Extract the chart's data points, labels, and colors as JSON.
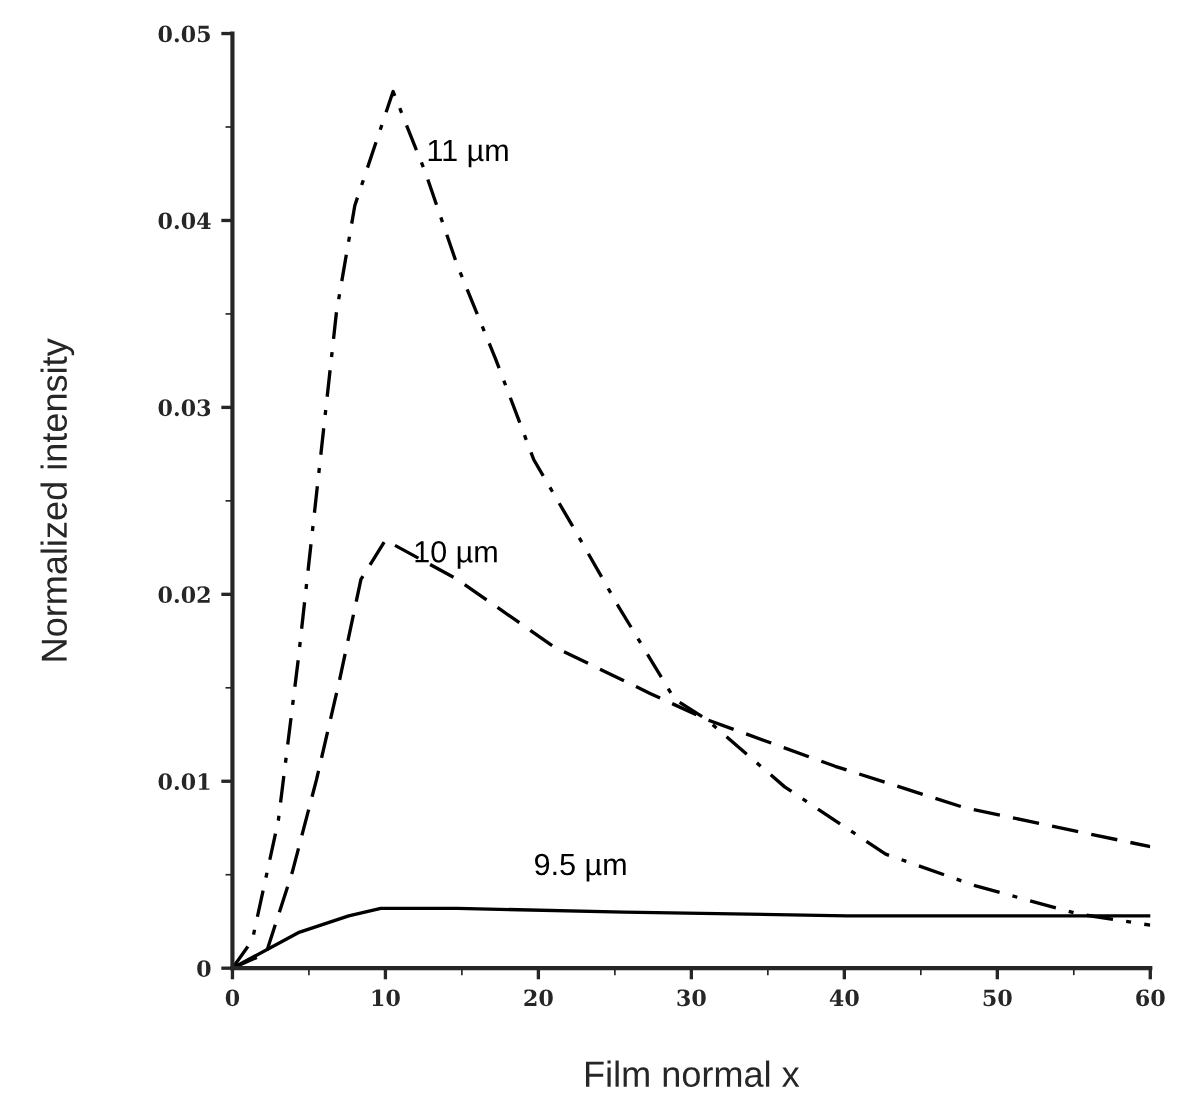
{
  "chart_data": {
    "type": "line",
    "xlabel": "Film normal x",
    "ylabel": "Normalized intensity",
    "xlim": [
      0,
      60
    ],
    "xticks": [
      0,
      10,
      20,
      30,
      40,
      50,
      60
    ],
    "ylim": [
      0,
      0.05
    ],
    "yticks": [
      0,
      0.01,
      0.02,
      0.03,
      0.04,
      0.05
    ],
    "grid": false,
    "legend": false,
    "marker": "none",
    "series": [
      {
        "name": "11 µm",
        "color": "#000000",
        "line_style": "dashdot",
        "x": [
          0,
          1.3,
          3.0,
          4.3,
          5.5,
          6.8,
          8.0,
          10.5,
          12.6,
          14.7,
          17.2,
          19.7,
          22.2,
          25.2,
          28.9,
          31.0,
          36.1,
          42.7,
          48.6,
          55.3,
          60
        ],
        "values": [
          0,
          0.0015,
          0.0079,
          0.0165,
          0.0254,
          0.0351,
          0.0408,
          0.0469,
          0.0426,
          0.0376,
          0.0326,
          0.0272,
          0.0237,
          0.0194,
          0.0144,
          0.0133,
          0.0097,
          0.0061,
          0.0044,
          0.0029,
          0.0023
        ]
      },
      {
        "name": "10 µm",
        "color": "#000000",
        "line_style": "dashed",
        "x": [
          0,
          2.2,
          3.9,
          5.5,
          7.0,
          8.4,
          10,
          14.7,
          21.0,
          27.3,
          31.0,
          39.4,
          47.8,
          60
        ],
        "values": [
          0,
          0.0008,
          0.0051,
          0.0101,
          0.0154,
          0.0208,
          0.0229,
          0.0208,
          0.0172,
          0.0147,
          0.0133,
          0.0108,
          0.0086,
          0.0065
        ]
      },
      {
        "name": "9.5 µm",
        "color": "#000000",
        "line_style": "solid",
        "x": [
          0,
          4.3,
          7.6,
          9.7,
          14.7,
          25.6,
          40.2,
          60
        ],
        "values": [
          0,
          0.0019,
          0.0028,
          0.0032,
          0.0032,
          0.003,
          0.0028,
          0.0028
        ]
      }
    ]
  }
}
